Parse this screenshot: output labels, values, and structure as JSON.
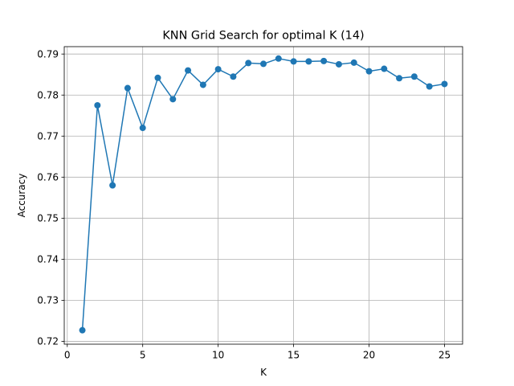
{
  "chart_data": {
    "type": "line",
    "title": "KNN Grid Search for optimal K (14)",
    "xlabel": "K",
    "ylabel": "Accuracy",
    "xlim": [
      -0.2,
      26.2
    ],
    "ylim": [
      0.7193,
      0.7918
    ],
    "xticks": [
      0,
      5,
      10,
      15,
      20,
      25
    ],
    "yticks": [
      0.72,
      0.73,
      0.74,
      0.75,
      0.76,
      0.77,
      0.78,
      0.79
    ],
    "grid": true,
    "series_color": "#1f77b4",
    "marker": "circle",
    "x": [
      1,
      2,
      3,
      4,
      5,
      6,
      7,
      8,
      9,
      10,
      11,
      12,
      13,
      14,
      15,
      16,
      17,
      18,
      19,
      20,
      21,
      22,
      23,
      24,
      25
    ],
    "values": [
      0.7227,
      0.7775,
      0.758,
      0.7817,
      0.772,
      0.7842,
      0.779,
      0.786,
      0.7825,
      0.7863,
      0.7845,
      0.7878,
      0.7876,
      0.7889,
      0.7882,
      0.7882,
      0.7883,
      0.7875,
      0.7879,
      0.7858,
      0.7864,
      0.7841,
      0.7845,
      0.7821,
      0.7827
    ]
  }
}
